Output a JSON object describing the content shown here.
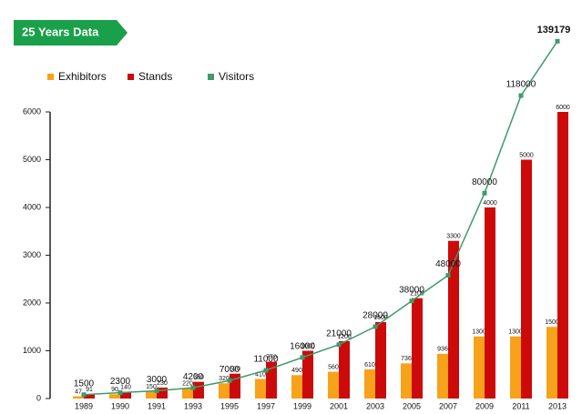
{
  "chart_data": {
    "type": "bar",
    "title": "25 Years Data",
    "categories": [
      "1989",
      "1990",
      "1991",
      "1993",
      "1995",
      "1997",
      "1999",
      "2001",
      "2003",
      "2005",
      "2007",
      "2009",
      "2011",
      "2013"
    ],
    "series": [
      {
        "name": "Exhibitors",
        "color": "#f7a21b",
        "values": [
          47,
          90,
          150,
          220,
          320,
          410,
          490,
          560,
          610,
          736,
          936,
          1300,
          1300,
          1500
        ]
      },
      {
        "name": "Stands",
        "color": "#cc0a0a",
        "values": [
          91,
          140,
          230,
          350,
          520,
          770,
          1000,
          1200,
          1600,
          2100,
          3300,
          4000,
          5000,
          6000
        ]
      },
      {
        "name": "Visitors",
        "color": "#3f9a6c",
        "type": "line",
        "axis": "y2",
        "values": [
          1500,
          2300,
          3000,
          4200,
          7000,
          11000,
          16000,
          21000,
          28000,
          38000,
          48000,
          80000,
          118000,
          139179
        ]
      }
    ],
    "ylim": [
      0,
      6000
    ],
    "yticks": [
      0,
      1000,
      2000,
      3000,
      4000,
      5000,
      6000
    ],
    "y2lim": [
      0,
      140000
    ],
    "grid": false,
    "legend": "top-left"
  }
}
